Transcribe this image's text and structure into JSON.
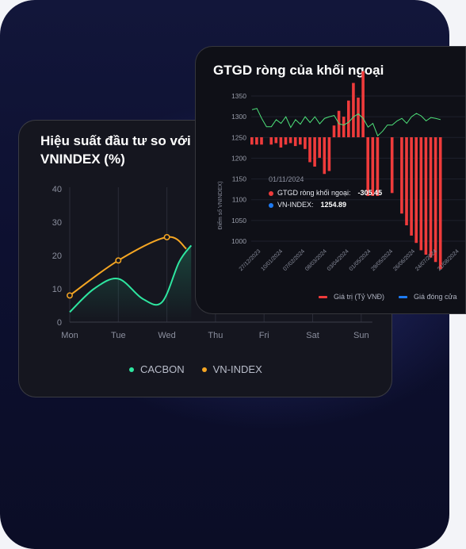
{
  "colors": {
    "cacbon": "#2ee6a0",
    "vn_index": "#f5a623",
    "net_value": "#ef3b3b",
    "close_price": "#1e7bf2",
    "vn_line": "#4ee27a"
  },
  "performance_card": {
    "title": "Hiệu suất đầu tư so với VNINDEX (%)",
    "legend": [
      {
        "label": "CACBON",
        "icon": "dot"
      },
      {
        "label": "VN-INDEX",
        "icon": "dot"
      }
    ]
  },
  "flow_card": {
    "title": "GTGD ròng của khối ngoại",
    "y_axis_label": "Điểm số VNINDEX)",
    "tooltip": {
      "date": "01/11/2024",
      "rows": [
        {
          "label": "GTGD ròng khối ngoại:",
          "value": "-305.45"
        },
        {
          "label": "VN-INDEX:",
          "value": "1254.89"
        }
      ]
    },
    "legend": [
      {
        "label": "Giá trị (Tỷ VNĐ)"
      },
      {
        "label": "Giá đóng cửa"
      }
    ]
  },
  "chart_data": [
    {
      "type": "line",
      "categories": [
        "Mon",
        "Tue",
        "Wed",
        "Thu",
        "Fri",
        "Sat",
        "Sun"
      ],
      "ylim": [
        0,
        40
      ],
      "yticks": [
        0,
        10,
        20,
        30,
        40
      ],
      "series": [
        {
          "name": "CACBON",
          "x": [
            0,
            0.5,
            1.0,
            1.5,
            1.9,
            2.25,
            2.5
          ],
          "values": [
            3,
            10,
            13,
            7,
            6,
            18,
            23
          ]
        },
        {
          "name": "VN-INDEX",
          "x": [
            0,
            1,
            2,
            2.4
          ],
          "values": [
            8,
            18.5,
            25.5,
            22
          ]
        }
      ]
    },
    {
      "type": "bar",
      "x_tick_labels": [
        "27/12/2023",
        "10/01/2024",
        "07/02/2024",
        "08/03/2024",
        "03/04/2024",
        "01/05/2024",
        "29/05/2024",
        "26/06/2024",
        "24/07/2024",
        "21/08/2024"
      ],
      "ylim": [
        1000,
        1350
      ],
      "yticks": [
        1000,
        1050,
        1100,
        1150,
        1200,
        1250,
        1300,
        1350
      ],
      "bar_values": [
        -5,
        -5,
        -5,
        0,
        -5,
        -4,
        -7,
        -5,
        -4,
        -6,
        -5,
        -8,
        -17,
        -20,
        -14,
        -25,
        -23,
        8,
        18,
        14,
        25,
        37,
        27,
        45,
        -40,
        -40,
        -40,
        0,
        0,
        -38,
        0,
        -52,
        -60,
        -67,
        -72,
        -77,
        -80,
        -82,
        -85,
        -90
      ],
      "vn_index_line": [
        1317,
        1320,
        1296,
        1276,
        1276,
        1293,
        1284,
        1300,
        1274,
        1293,
        1282,
        1300,
        1286,
        1300,
        1283,
        1296,
        1300,
        1303,
        1283,
        1280,
        1287,
        1300,
        1307,
        1296,
        1275,
        1284,
        1254,
        1265,
        1280,
        1280,
        1290,
        1296,
        1284,
        1300,
        1308,
        1302,
        1290,
        1298,
        1296,
        1293
      ]
    }
  ]
}
